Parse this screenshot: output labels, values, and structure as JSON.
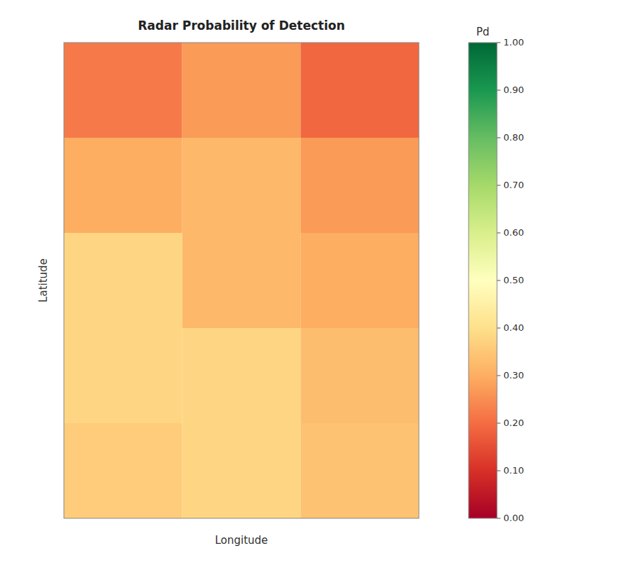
{
  "chart_data": {
    "type": "heatmap",
    "title": "Radar Probability of Detection",
    "xlabel": "Longitude",
    "ylabel": "Latitude",
    "colorbar_label": "Pd",
    "color": "RdYlGn",
    "tick_labels": false,
    "values": [
      [
        0.22,
        0.27,
        0.19
      ],
      [
        0.3,
        0.32,
        0.27
      ],
      [
        0.38,
        0.32,
        0.3
      ],
      [
        0.38,
        0.38,
        0.33
      ],
      [
        0.36,
        0.38,
        0.34
      ]
    ],
    "zlim": [
      0.0,
      1.0
    ],
    "zticks": [
      {
        "value": 0.0,
        "label": "0.00"
      },
      {
        "value": 0.1,
        "label": "0.10"
      },
      {
        "value": 0.2,
        "label": "0.20"
      },
      {
        "value": 0.3,
        "label": "0.30"
      },
      {
        "value": 0.4,
        "label": "0.40"
      },
      {
        "value": 0.5,
        "label": "0.50"
      },
      {
        "value": 0.6,
        "label": "0.60"
      },
      {
        "value": 0.7,
        "label": "0.70"
      },
      {
        "value": 0.8,
        "label": "0.80"
      },
      {
        "value": 0.9,
        "label": "0.90"
      },
      {
        "value": 1.0,
        "label": "1.00"
      }
    ]
  }
}
